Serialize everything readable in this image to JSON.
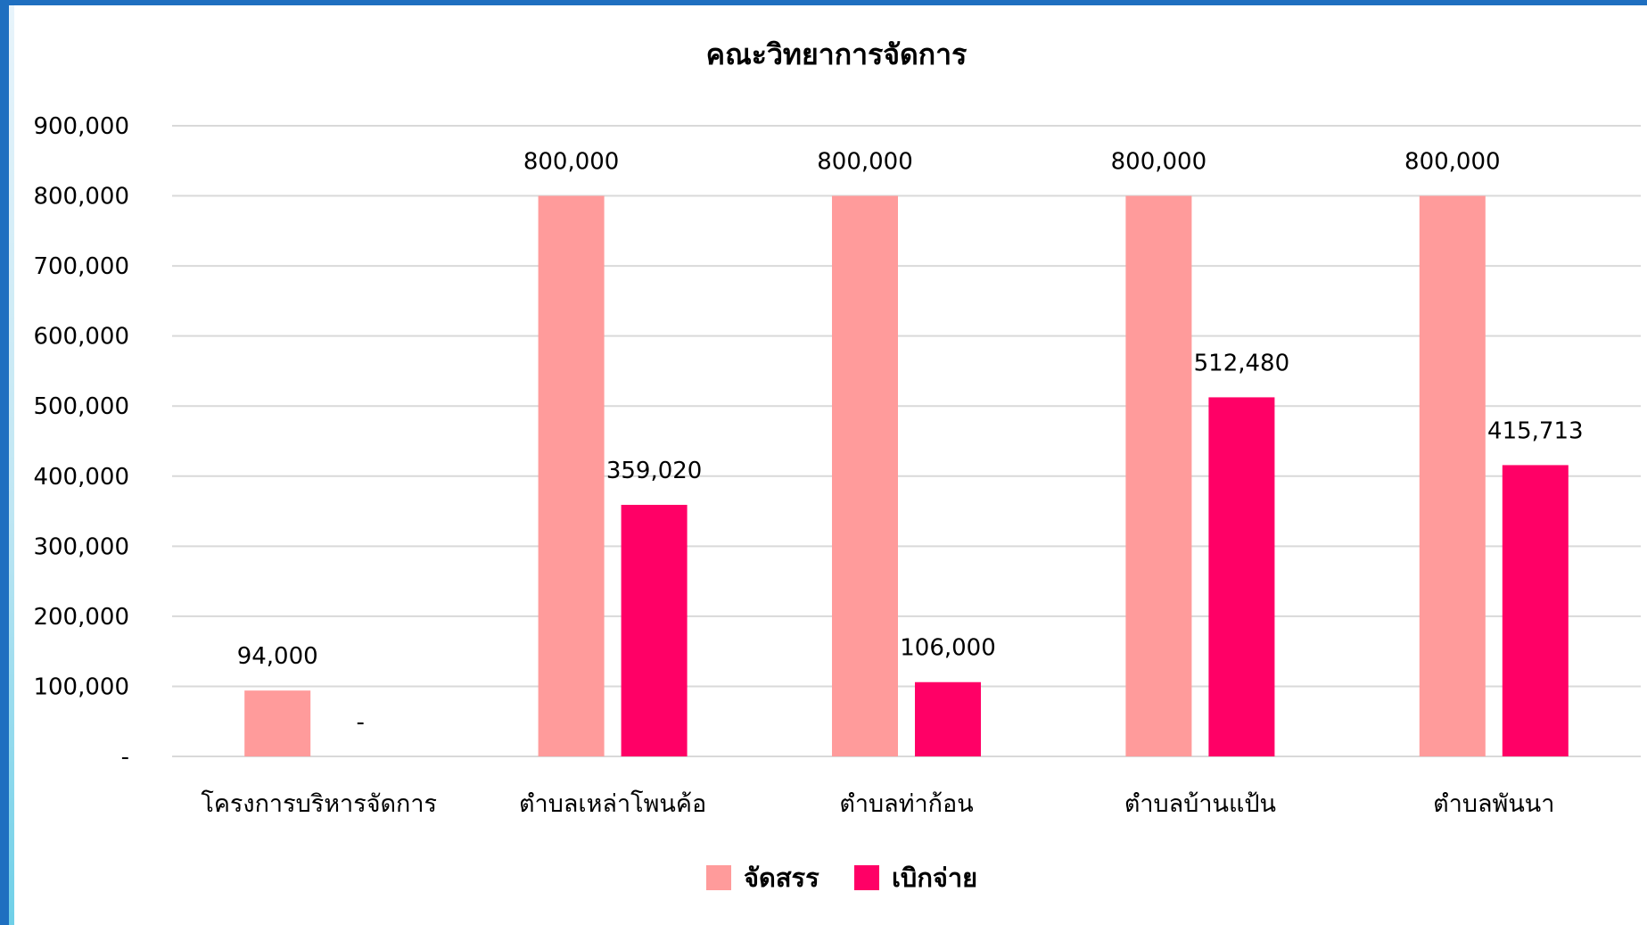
{
  "colors": {
    "frame": "#1f6fc0",
    "series_allocated": "#ff9b9b",
    "series_disbursed": "#ff0066",
    "grid": "#d9d9d9"
  },
  "chart_data": {
    "type": "bar",
    "title": "คณะวิทยาการจัดการ",
    "categories": [
      "โครงการบริหารจัดการ",
      "ตำบลเหล่าโพนค้อ",
      "ตำบลท่าก้อน",
      "ตำบลบ้านแป้น",
      "ตำบลพันนา"
    ],
    "series": [
      {
        "name": "จัดสรร",
        "values": [
          94000,
          800000,
          800000,
          800000,
          800000
        ],
        "labels": [
          "94,000",
          "800,000",
          "800,000",
          "800,000",
          "800,000"
        ]
      },
      {
        "name": "เบิกจ่าย",
        "values": [
          0,
          359020,
          106000,
          512480,
          415713
        ],
        "labels": [
          "-",
          "359,020",
          "106,000",
          "512,480",
          "415,713"
        ]
      }
    ],
    "ylim": [
      0,
      900000
    ],
    "yticks": [
      "-",
      "100,000",
      "200,000",
      "300,000",
      "400,000",
      "500,000",
      "600,000",
      "700,000",
      "800,000",
      "900,000"
    ],
    "grid": true,
    "legend": "bottom"
  }
}
